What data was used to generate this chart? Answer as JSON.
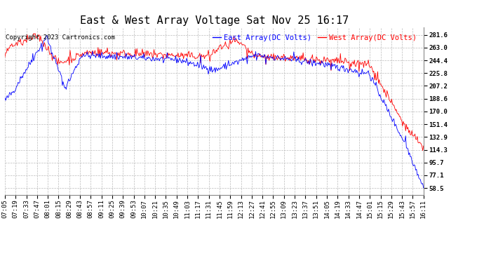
{
  "title": "East & West Array Voltage Sat Nov 25 16:17",
  "copyright": "Copyright 2023 Cartronics.com",
  "legend_east": "East Array(DC Volts)",
  "legend_west": "West Array(DC Volts)",
  "color_east": "#0000ff",
  "color_west": "#ff0000",
  "bg_color": "#ffffff",
  "grid_color": "#bbbbbb",
  "yticks": [
    58.5,
    77.1,
    95.7,
    114.3,
    132.9,
    151.4,
    170.0,
    188.6,
    207.2,
    225.8,
    244.4,
    263.0,
    281.6
  ],
  "ymin": 49.0,
  "ymax": 292.0,
  "xtick_labels": [
    "07:05",
    "07:19",
    "07:33",
    "07:47",
    "08:01",
    "08:15",
    "08:29",
    "08:43",
    "08:57",
    "09:11",
    "09:25",
    "09:39",
    "09:53",
    "10:07",
    "10:21",
    "10:35",
    "10:49",
    "11:03",
    "11:17",
    "11:31",
    "11:45",
    "11:59",
    "12:13",
    "12:27",
    "12:41",
    "12:55",
    "13:09",
    "13:23",
    "13:37",
    "13:51",
    "14:05",
    "14:19",
    "14:33",
    "14:47",
    "15:01",
    "15:15",
    "15:29",
    "15:43",
    "15:57",
    "16:11"
  ],
  "title_fontsize": 11,
  "axis_fontsize": 6.5,
  "copyright_fontsize": 6.5,
  "legend_fontsize": 7.5
}
